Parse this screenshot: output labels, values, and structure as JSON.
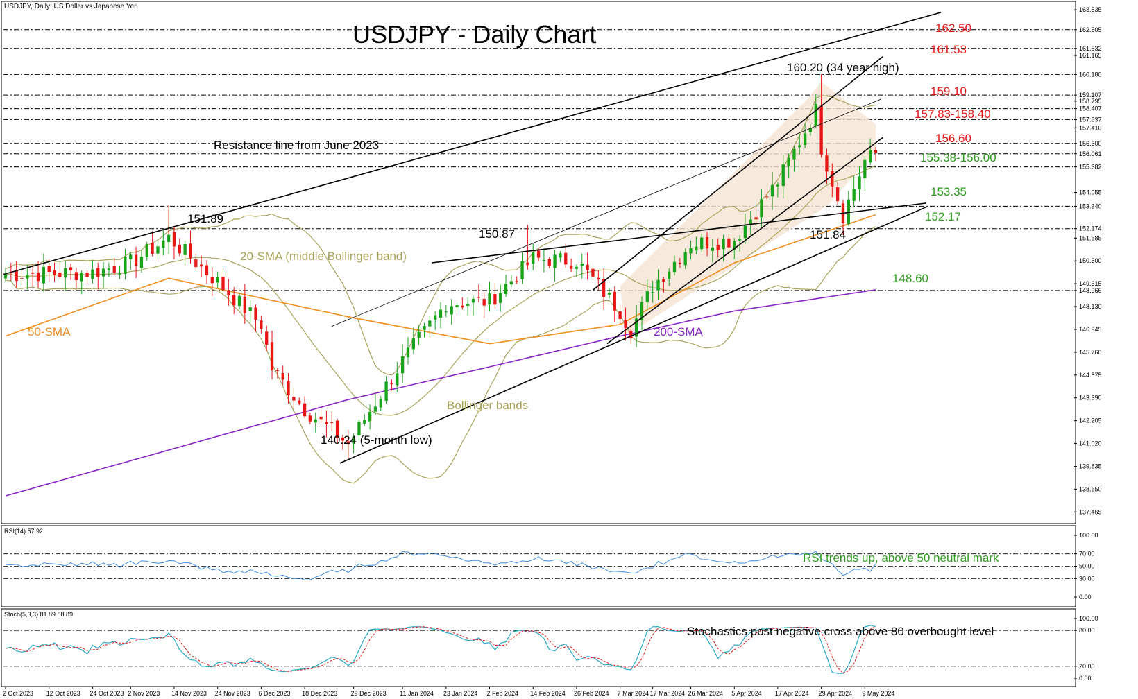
{
  "header": {
    "symbol_info": "USDJPY, Daily:  US Dollar vs Japanese Yen"
  },
  "title": "USDJPY - Daily Chart",
  "colors": {
    "bull": "#18a318",
    "bear": "#e81515",
    "sma20": "#a8a35a",
    "sma50": "#f28c1c",
    "sma200": "#8a25c8",
    "red_label": "#e81515",
    "green_label": "#2e9a1e",
    "rsi": "#3b8be0",
    "stoch_main": "#2aa8c8",
    "stoch_signal": "#e81515",
    "channel_fill": "#f5e3d3"
  },
  "price_axis": {
    "ticks": [
      "163.535",
      "162.505",
      "161.532",
      "161.165",
      "160.180",
      "159.107",
      "158.795",
      "158.407",
      "157.837",
      "157.410",
      "156.600",
      "156.061",
      "155.382",
      "154.055",
      "153.340",
      "152.174",
      "151.685",
      "150.500",
      "149.315",
      "148.966",
      "148.130",
      "146.945",
      "145.760",
      "144.575",
      "143.390",
      "142.205",
      "141.020",
      "139.835",
      "138.650",
      "137.465"
    ]
  },
  "date_axis": {
    "labels": [
      "2 Oct 2023",
      "12 Oct 2023",
      "24 Oct 2023",
      "2 Nov 2023",
      "14 Nov 2023",
      "24 Nov 2023",
      "6 Dec 2023",
      "18 Dec 2023",
      "29 Dec 2023",
      "11 Jan 2024",
      "23 Jan 2024",
      "2 Feb 2024",
      "14 Feb 2024",
      "26 Feb 2024",
      "7 Mar 2024",
      "17 Mar 2024",
      "26 Mar 2024",
      "5 Apr 2024",
      "17 Apr 2024",
      "29 Apr 2024",
      "9 May 2024"
    ]
  },
  "levels": [
    {
      "label": "162.50",
      "value": 162.5,
      "tone": "red"
    },
    {
      "label": "161.53",
      "value": 161.53,
      "tone": "red"
    },
    {
      "label": "159.10",
      "value": 159.1,
      "tone": "red"
    },
    {
      "label": "157.83-158.40",
      "value": 157.83,
      "tone": "red"
    },
    {
      "label": "156.60",
      "value": 156.6,
      "tone": "red"
    },
    {
      "label": "155.38-156.00",
      "value": 155.38,
      "tone": "green"
    },
    {
      "label": "153.35",
      "value": 153.35,
      "tone": "green"
    },
    {
      "label": "152.17",
      "value": 152.17,
      "tone": "green"
    },
    {
      "label": "148.60",
      "value": 148.6,
      "tone": "green"
    }
  ],
  "annotations": {
    "high": "160.20 (34 year high)",
    "resistance": "Resistance line from June 2023",
    "peak_nov": "151.89",
    "peak_feb": "150.87",
    "low_apr": "151.84",
    "low_dec": "140.24 (5-month low)",
    "sma20": "20-SMA (middle Bollinger band)",
    "sma50": "50-SMA",
    "sma200": "200-SMA",
    "bollinger": "Bollinger bands"
  },
  "rsi_panel": {
    "title": "RSI(14) 57.92",
    "ticks": [
      "100.00",
      "70.00",
      "50.00",
      "30.00",
      "0.00"
    ],
    "comment": "RSI trends up, above 50 neutral mark"
  },
  "stoch_panel": {
    "title": "Stoch(5,3,3) 81.89 88.89",
    "ticks": [
      "100.00",
      "80.00",
      "20.00",
      "0.00"
    ],
    "comment": "Stochastics post negative cross above 80 overbought level"
  },
  "chart_data": {
    "type": "candlestick",
    "symbol": "USDJPY",
    "timeframe": "Daily",
    "x_range": [
      "2 Oct 2023",
      "13 May 2024"
    ],
    "ylim": [
      136.9,
      164.0
    ],
    "close_anchors": [
      {
        "date": "2 Oct 2023",
        "close": 149.8
      },
      {
        "date": "24 Oct 2023",
        "close": 149.9
      },
      {
        "date": "2 Nov 2023",
        "close": 150.4
      },
      {
        "date": "13 Nov 2023",
        "close": 151.7
      },
      {
        "date": "24 Nov 2023",
        "close": 149.4
      },
      {
        "date": "6 Dec 2023",
        "close": 147.2
      },
      {
        "date": "8 Dec 2023",
        "close": 144.9
      },
      {
        "date": "18 Dec 2023",
        "close": 142.8
      },
      {
        "date": "28 Dec 2023",
        "close": 141.0
      },
      {
        "date": "11 Jan 2024",
        "close": 145.3
      },
      {
        "date": "23 Jan 2024",
        "close": 148.3
      },
      {
        "date": "2 Feb 2024",
        "close": 148.4
      },
      {
        "date": "14 Feb 2024",
        "close": 150.6
      },
      {
        "date": "26 Feb 2024",
        "close": 150.5
      },
      {
        "date": "7 Mar 2024",
        "close": 147.9
      },
      {
        "date": "11 Mar 2024",
        "close": 146.9
      },
      {
        "date": "17 Mar 2024",
        "close": 149.2
      },
      {
        "date": "26 Mar 2024",
        "close": 151.4
      },
      {
        "date": "5 Apr 2024",
        "close": 151.6
      },
      {
        "date": "17 Apr 2024",
        "close": 154.6
      },
      {
        "date": "26 Apr 2024",
        "close": 158.3
      },
      {
        "date": "29 Apr 2024",
        "close": 156.4
      },
      {
        "date": "3 May 2024",
        "close": 152.9
      },
      {
        "date": "9 May 2024",
        "close": 155.7
      },
      {
        "date": "13 May 2024",
        "close": 156.1
      }
    ],
    "key_points": [
      {
        "label": "160.20 (34 year high)",
        "date": "29 Apr 2024",
        "value": 160.2
      },
      {
        "label": "140.24 (5-month low)",
        "date": "28 Dec 2023",
        "value": 140.24
      },
      {
        "label": "151.89",
        "date": "13 Nov 2023",
        "value": 151.89
      },
      {
        "label": "150.87",
        "date": "13 Feb 2024",
        "value": 150.87
      },
      {
        "label": "151.84",
        "date": "3 May 2024",
        "value": 151.84
      }
    ],
    "moving_averages": [
      {
        "name": "50-SMA",
        "points": [
          {
            "date": "2 Oct 2023",
            "value": 146.6
          },
          {
            "date": "13 Nov 2023",
            "value": 149.6
          },
          {
            "date": "28 Dec 2023",
            "value": 147.6
          },
          {
            "date": "2 Feb 2024",
            "value": 146.2
          },
          {
            "date": "7 Mar 2024",
            "value": 147.2
          },
          {
            "date": "5 Apr 2024",
            "value": 150.4
          },
          {
            "date": "13 May 2024",
            "value": 152.9
          }
        ]
      },
      {
        "name": "200-SMA",
        "points": [
          {
            "date": "2 Oct 2023",
            "value": 138.3
          },
          {
            "date": "28 Dec 2023",
            "value": 143.3
          },
          {
            "date": "2 Feb 2024",
            "value": 145.0
          },
          {
            "date": "7 Mar 2024",
            "value": 146.6
          },
          {
            "date": "5 Apr 2024",
            "value": 147.9
          },
          {
            "date": "13 May 2024",
            "value": 149.0
          }
        ]
      }
    ]
  }
}
